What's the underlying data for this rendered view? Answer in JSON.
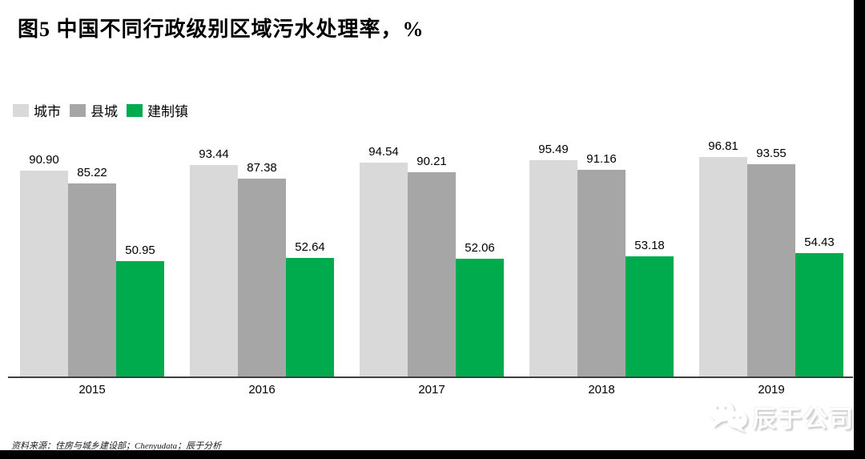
{
  "title": "图5 中国不同行政级别区域污水处理率，%",
  "chart_data": {
    "type": "bar",
    "title": "图5 中国不同行政级别区域污水处理率，%",
    "categories": [
      "2015",
      "2016",
      "2017",
      "2018",
      "2019"
    ],
    "series": [
      {
        "name": "城市",
        "color": "#d9d9d9",
        "values": [
          90.9,
          93.44,
          94.54,
          95.49,
          96.81
        ]
      },
      {
        "name": "县城",
        "color": "#a6a6a6",
        "values": [
          85.22,
          87.38,
          90.21,
          91.16,
          93.55
        ]
      },
      {
        "name": "建制镇",
        "color": "#00ab4e",
        "values": [
          50.95,
          52.64,
          52.06,
          53.18,
          54.43
        ]
      }
    ],
    "xlabel": "",
    "ylabel": "",
    "ylim": [
      0,
      100
    ],
    "grid": false,
    "value_labels": true,
    "value_label_format": "2dp",
    "legend_position": "top-left"
  },
  "source_note": "资料来源：住房与城乡建设部；Chenyudata；辰于分析",
  "watermark": {
    "company": "辰于公司",
    "icon": "wechat-bubbles-icon"
  },
  "colors": {
    "background": "#ffffff",
    "axis": "#3f3f3f",
    "text": "#000000",
    "screen_border": "#000000"
  }
}
